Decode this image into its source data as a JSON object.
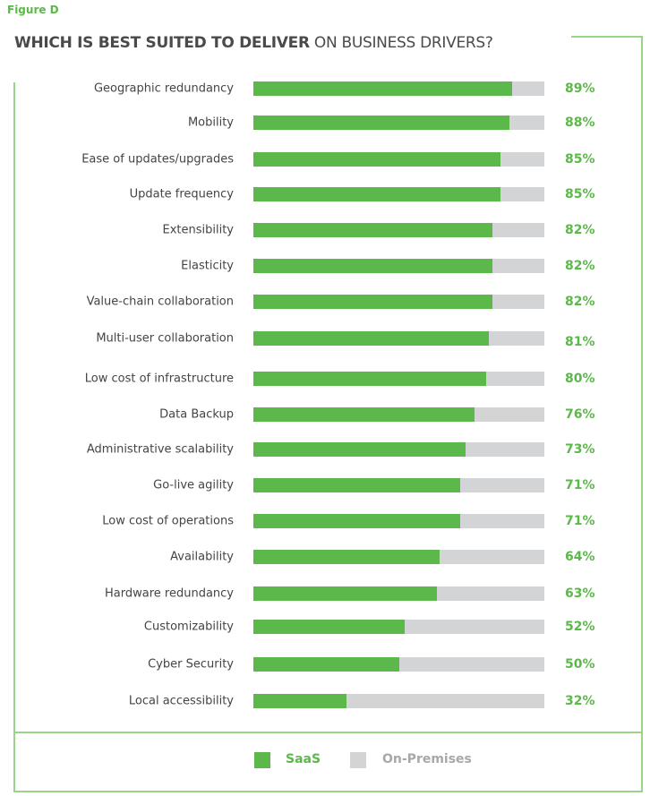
{
  "figure_label": "Figure D",
  "chart_data": {
    "type": "bar",
    "orientation": "horizontal",
    "stacked_to": 100,
    "title_bold": "WHICH IS BEST SUITED TO DELIVER",
    "title_light": " ON BUSINESS DRIVERS?",
    "categories": [
      "Geographic redundancy",
      "Mobility",
      "Ease of updates/upgrades",
      "Update frequency",
      "Extensibility",
      "Elasticity",
      "Value-chain collaboration",
      "Multi-user collaboration",
      "Low cost of infrastructure",
      "Data Backup",
      "Administrative scalability",
      "Go-live agility",
      "Low cost of operations",
      "Availability",
      "Hardware redundancy",
      "Customizability",
      "Cyber Security",
      "Local accessibility"
    ],
    "series": [
      {
        "name": "SaaS",
        "color": "#5cb84a",
        "values": [
          89,
          88,
          85,
          85,
          82,
          82,
          82,
          81,
          80,
          76,
          73,
          71,
          71,
          64,
          63,
          52,
          50,
          32
        ]
      },
      {
        "name": "On-Premises",
        "color": "#d3d4d6",
        "values": [
          11,
          12,
          15,
          15,
          18,
          18,
          18,
          19,
          20,
          24,
          27,
          29,
          29,
          36,
          37,
          48,
          50,
          68
        ]
      }
    ],
    "data_labels": [
      "89%",
      "88%",
      "85%",
      "85%",
      "82%",
      "82%",
      "82%",
      "81%",
      "80%",
      "76%",
      "73%",
      "71%",
      "71%",
      "64%",
      "63%",
      "52%",
      "50%",
      "32%"
    ],
    "xlim": [
      0,
      100
    ],
    "grid": false,
    "legend_position": "bottom"
  }
}
